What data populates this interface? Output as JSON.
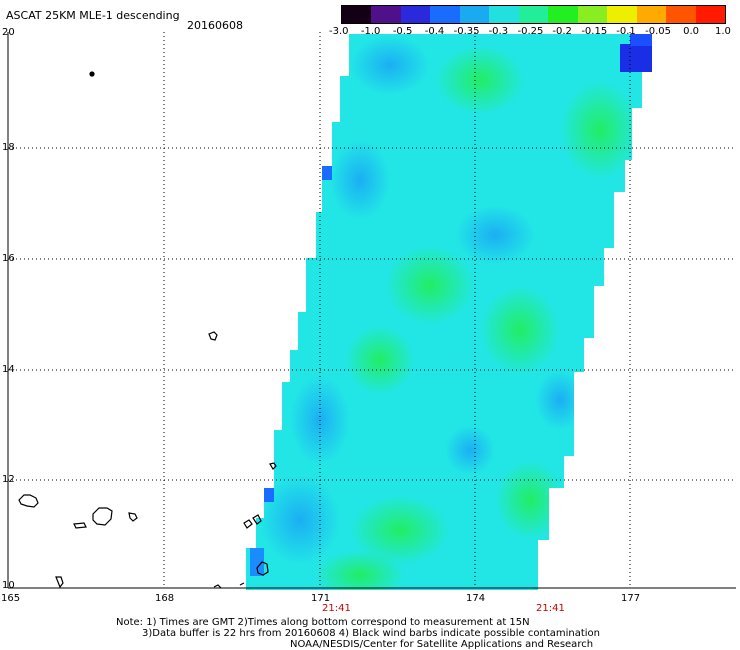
{
  "header": {
    "title": "ASCAT 25KM MLE-1 descending",
    "date": "20160608"
  },
  "colorbar": {
    "labels": [
      "-3.0",
      "-1.0",
      "-0.5",
      "-0.4",
      "-0.35",
      "-0.3",
      "-0.25",
      "-0.2",
      "-0.15",
      "-0.1",
      "-0.05",
      "0.0",
      "1.0"
    ],
    "colors": [
      "#140014",
      "#50108a",
      "#2a2adc",
      "#1a6cff",
      "#1aaaf0",
      "#22e0e0",
      "#22ee99",
      "#22ee22",
      "#88ee22",
      "#eeee00",
      "#ffaa00",
      "#ff5500",
      "#ff1a00"
    ]
  },
  "axes": {
    "y_ticks": [
      "20",
      "18",
      "16",
      "14",
      "12",
      "10"
    ],
    "x_ticks": [
      "165",
      "168",
      "171",
      "174",
      "177"
    ],
    "time_labels": [
      "21:41",
      "21:41"
    ]
  },
  "footer": {
    "line1": "Note: 1) Times are GMT 2)Times along bottom correspond to measurement at 15N",
    "line2": "3)Data buffer is 22 hrs from 20160608 4) Black wind barbs indicate possible contamination",
    "line3": "NOAA/NESDIS/Center for Satellite Applications and Research"
  },
  "style": {
    "swath_base": "#22e6e6",
    "grid_color": "#000000",
    "time_label_color": "#cc0000"
  }
}
